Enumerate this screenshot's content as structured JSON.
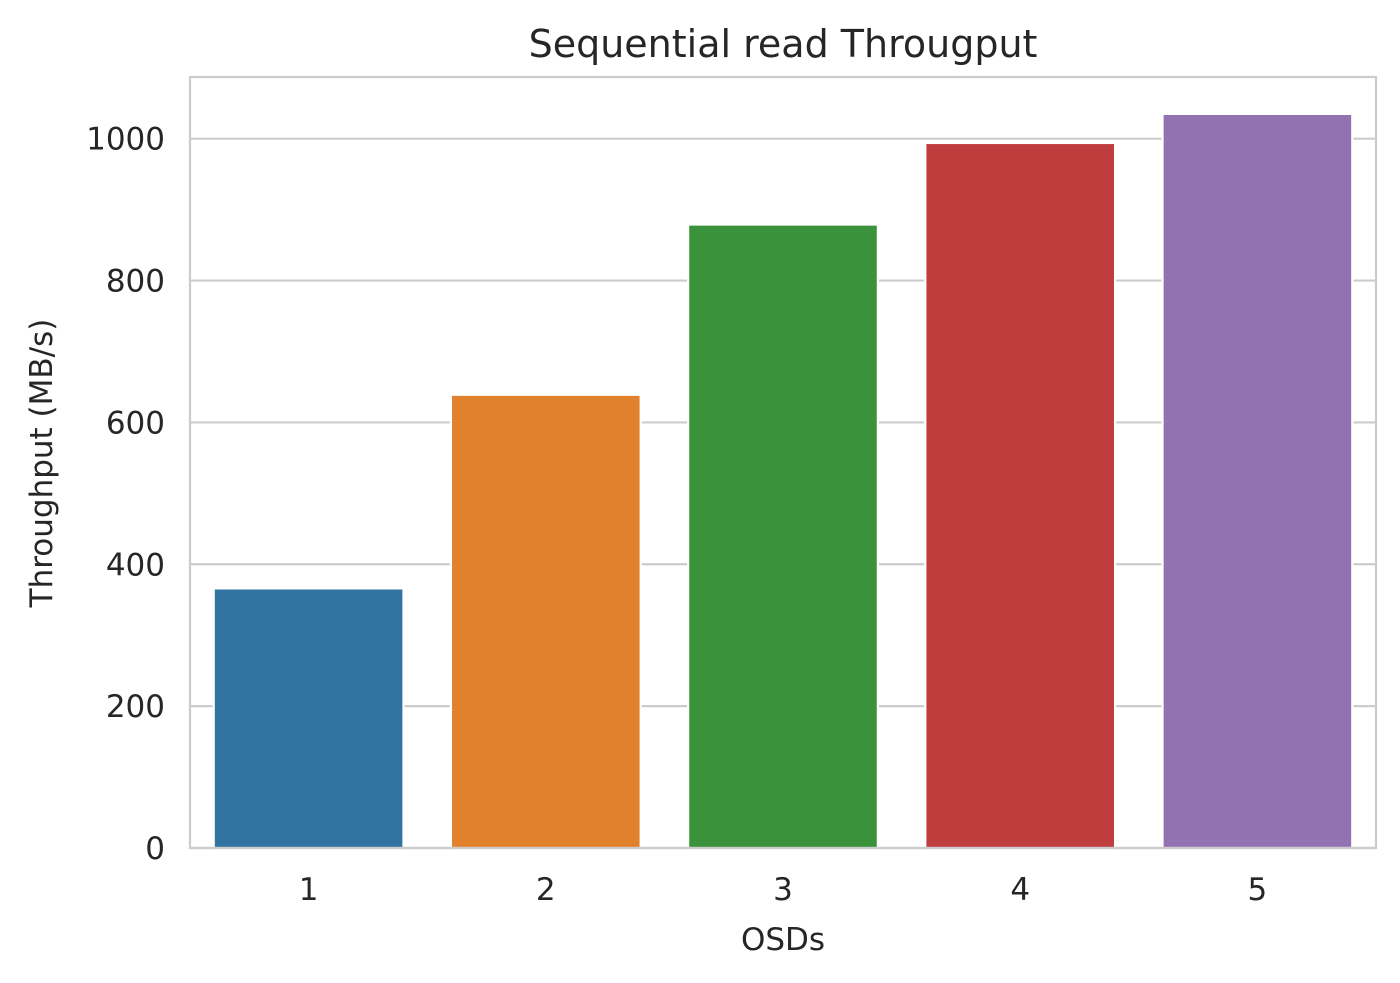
{
  "chart_data": {
    "type": "bar",
    "title": "Sequential read Througput",
    "xlabel": "OSDs",
    "ylabel": "Throughput (MB/s)",
    "categories": [
      "1",
      "2",
      "3",
      "4",
      "5"
    ],
    "values": [
      366,
      639,
      879,
      994,
      1035
    ],
    "colors": [
      "#3274a1",
      "#e1812c",
      "#3a923a",
      "#c03d3e",
      "#9372b2"
    ],
    "ylim": [
      0,
      1087
    ],
    "yticks": [
      0,
      200,
      400,
      600,
      800,
      1000
    ],
    "ytick_labels": [
      "0",
      "200",
      "400",
      "600",
      "800",
      "1000"
    ],
    "grid": "horizontal",
    "background": "#ffffff"
  }
}
